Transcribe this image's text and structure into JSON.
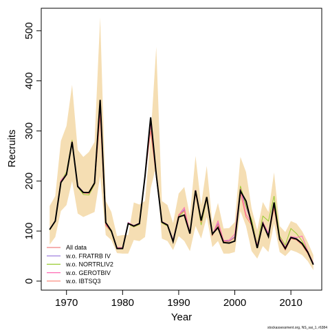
{
  "chart_data": {
    "type": "line",
    "xlabel": "Year",
    "ylabel": "Recruits",
    "xlim": [
      1965.5,
      2015.5
    ],
    "ylim": [
      -18,
      545
    ],
    "x_ticks": [
      1970,
      1980,
      1990,
      2000,
      2010
    ],
    "y_ticks": [
      0,
      100,
      200,
      300,
      400,
      500
    ],
    "grid": false,
    "legend_position": "bottom-left",
    "footnote": "stockassessment.org, NS_sai_1, r6384",
    "x": [
      1967,
      1968,
      1969,
      1970,
      1971,
      1972,
      1973,
      1974,
      1975,
      1976,
      1977,
      1978,
      1979,
      1980,
      1981,
      1982,
      1983,
      1984,
      1985,
      1986,
      1987,
      1988,
      1989,
      1990,
      1991,
      1992,
      1993,
      1994,
      1995,
      1996,
      1997,
      1998,
      1999,
      2000,
      2001,
      2002,
      2003,
      2004,
      2005,
      2006,
      2007,
      2008,
      2009,
      2010,
      2011,
      2012,
      2013,
      2014
    ],
    "band": {
      "name": "confidence interval",
      "color": "#F5DEB3",
      "lower": [
        73,
        88,
        140,
        152,
        200,
        135,
        128,
        133,
        138,
        210,
        92,
        82,
        56,
        55,
        55,
        82,
        80,
        88,
        185,
        230,
        85,
        80,
        62,
        90,
        80,
        60,
        110,
        85,
        128,
        68,
        80,
        55,
        55,
        58,
        140,
        110,
        60,
        45,
        70,
        58,
        115,
        58,
        50,
        62,
        58,
        52,
        40,
        22
      ],
      "upper": [
        150,
        170,
        280,
        310,
        392,
        262,
        248,
        258,
        278,
        527,
        160,
        138,
        90,
        92,
        92,
        157,
        153,
        160,
        288,
        468,
        160,
        152,
        116,
        175,
        188,
        130,
        250,
        152,
        230,
        116,
        156,
        105,
        106,
        118,
        248,
        218,
        145,
        102,
        158,
        138,
        217,
        110,
        98,
        120,
        115,
        100,
        78,
        52
      ]
    },
    "series": [
      {
        "name": "All data",
        "color": "#F08080",
        "values": [
          103,
          120,
          200,
          215,
          280,
          190,
          177,
          176,
          195,
          338,
          112,
          100,
          67,
          67,
          116,
          110,
          115,
          210,
          312,
          210,
          118,
          112,
          82,
          130,
          142,
          95,
          180,
          118,
          165,
          92,
          114,
          80,
          80,
          88,
          183,
          148,
          116,
          70,
          116,
          93,
          150,
          85,
          67,
          88,
          84,
          74,
          58,
          34
        ]
      },
      {
        "name": "w.o. FRATRB IV",
        "color": "#9370DB",
        "values": [
          104,
          121,
          201,
          216,
          279,
          191,
          178,
          177,
          196,
          340,
          113,
          100,
          67,
          67,
          117,
          111,
          116,
          211,
          314,
          211,
          119,
          113,
          83,
          131,
          143,
          96,
          182,
          119,
          166,
          93,
          115,
          81,
          80,
          89,
          184,
          149,
          117,
          71,
          117,
          94,
          151,
          86,
          68,
          89,
          85,
          75,
          58,
          35
        ]
      },
      {
        "name": "w.o. NORTRLIV2",
        "color": "#9ACD32",
        "values": [
          102,
          119,
          199,
          218,
          282,
          188,
          173,
          172,
          193,
          336,
          111,
          98,
          65,
          66,
          114,
          108,
          113,
          208,
          310,
          208,
          116,
          110,
          80,
          128,
          140,
          94,
          178,
          112,
          163,
          91,
          112,
          79,
          79,
          87,
          190,
          150,
          123,
          73,
          130,
          120,
          170,
          90,
          72,
          105,
          95,
          80,
          60,
          35
        ]
      },
      {
        "name": "w.o. GEROTBIV",
        "color": "#FF69B4",
        "values": [
          104,
          121,
          201,
          214,
          279,
          190,
          178,
          177,
          196,
          339,
          113,
          100,
          67,
          67,
          117,
          111,
          116,
          210,
          313,
          210,
          119,
          113,
          82,
          132,
          147,
          96,
          182,
          120,
          167,
          92,
          120,
          81,
          82,
          94,
          185,
          133,
          117,
          72,
          118,
          96,
          152,
          87,
          68,
          89,
          87,
          90,
          60,
          36
        ]
      },
      {
        "name": "w.o. IBTSQ3",
        "color": "#FA8072",
        "values": [
          103,
          120,
          198,
          213,
          278,
          189,
          176,
          175,
          194,
          330,
          111,
          99,
          66,
          66,
          115,
          109,
          114,
          208,
          300,
          208,
          117,
          111,
          81,
          133,
          140,
          94,
          175,
          117,
          164,
          91,
          113,
          79,
          79,
          87,
          176,
          128,
          112,
          68,
          112,
          90,
          145,
          82,
          62,
          85,
          82,
          72,
          55,
          33
        ]
      }
    ],
    "estimate": {
      "name": "Estimate",
      "color": "#000000",
      "values": [
        103,
        120,
        197,
        213,
        278,
        189,
        177,
        177,
        196,
        362,
        117,
        100,
        65,
        65,
        115,
        110,
        115,
        210,
        327,
        213,
        118,
        112,
        79,
        128,
        132,
        95,
        181,
        121,
        168,
        94,
        107,
        77,
        76,
        80,
        180,
        160,
        114,
        66,
        115,
        89,
        157,
        83,
        65,
        87,
        84,
        75,
        58,
        33
      ]
    }
  }
}
